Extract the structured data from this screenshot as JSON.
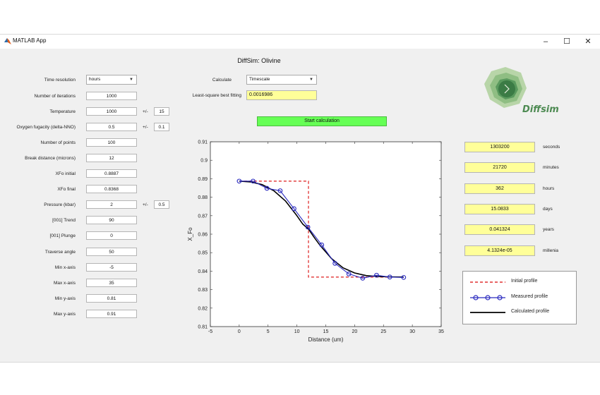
{
  "window": {
    "title": "MATLAB App",
    "minimize_icon": "minimize-icon",
    "maximize_icon": "maximize-icon",
    "close_icon": "close-icon"
  },
  "app_title": "DiffSim: Olivine",
  "left_panel": {
    "time_resolution": {
      "label": "Time resolution",
      "value": "hours"
    },
    "fields": [
      {
        "label": "Number of iterations",
        "value": "1000"
      },
      {
        "label": "Temperature",
        "value": "1000",
        "pm": "+/-",
        "err": "15"
      },
      {
        "label": "Oxygen fugacity (delta-NNO)",
        "value": "0.5",
        "pm": "+/-",
        "err": "0.1"
      },
      {
        "label": "Number of points",
        "value": "100"
      },
      {
        "label": "Break distance (microns)",
        "value": "12"
      },
      {
        "label": "XFo initial",
        "value": "0.8887"
      },
      {
        "label": "XFo final",
        "value": "0.8368"
      },
      {
        "label": "Pressure (kbar)",
        "value": "2",
        "pm": "+/-",
        "err": "0.5"
      },
      {
        "label": "[001] Trend",
        "value": "90"
      },
      {
        "label": "[001] Plunge",
        "value": "0"
      },
      {
        "label": "Traverse angle",
        "value": "50"
      },
      {
        "label": "Min x-axis",
        "value": "-5"
      },
      {
        "label": "Max x-axis",
        "value": "35"
      },
      {
        "label": "Min y-axis",
        "value": "0.81"
      },
      {
        "label": "Max y-axis",
        "value": "0.91"
      }
    ]
  },
  "calc": {
    "calculate_label": "Calculate",
    "calculate_value": "Timescale",
    "lsq_label": "Least-square best fitting",
    "lsq_value": "0.0016986",
    "start_button": "Start calculation"
  },
  "results": [
    {
      "value": "1303200",
      "unit": "seconds"
    },
    {
      "value": "21720",
      "unit": "minutes"
    },
    {
      "value": "362",
      "unit": "hours"
    },
    {
      "value": "15.0833",
      "unit": "days"
    },
    {
      "value": "0.041324",
      "unit": "years"
    },
    {
      "value": "4.1324e-05",
      "unit": "millenia"
    }
  ],
  "logo": {
    "text": "Diffsim",
    "colors": [
      "#b8d5a8",
      "#8fbe83",
      "#5a9a5e",
      "#3b7b45"
    ]
  },
  "chart_data": {
    "type": "line",
    "xlabel": "Distance (um)",
    "ylabel": "X_Fo",
    "xlim": [
      -5,
      35
    ],
    "ylim": [
      0.81,
      0.91
    ],
    "xticks": [
      -5,
      0,
      5,
      10,
      15,
      20,
      25,
      30,
      35
    ],
    "yticks": [
      0.81,
      0.82,
      0.83,
      0.84,
      0.85,
      0.86,
      0.87,
      0.88,
      0.89,
      0.9,
      0.91
    ],
    "series": [
      {
        "name": "Initial profile",
        "color": "#e03030",
        "style": "dashed",
        "x": [
          0,
          12,
          12,
          28.5
        ],
        "y": [
          0.8887,
          0.8887,
          0.8368,
          0.8368
        ]
      },
      {
        "name": "Measured profile",
        "color": "#2a2abf",
        "style": "line-circles",
        "x": [
          0,
          2.4,
          4.8,
          7.1,
          9.5,
          11.9,
          14.3,
          16.6,
          19.0,
          21.4,
          23.8,
          26.1,
          28.5
        ],
        "y": [
          0.8887,
          0.8887,
          0.8848,
          0.8835,
          0.8738,
          0.8638,
          0.8542,
          0.8442,
          0.8385,
          0.8362,
          0.8378,
          0.8368,
          0.8366
        ]
      },
      {
        "name": "Calculated profile",
        "color": "#000000",
        "style": "solid",
        "x": [
          0,
          2,
          4,
          6,
          8,
          10,
          11,
          12,
          13,
          14,
          16,
          18,
          20,
          22,
          24,
          26,
          28.5
        ],
        "y": [
          0.8887,
          0.8883,
          0.8868,
          0.8835,
          0.878,
          0.87,
          0.8655,
          0.8628,
          0.8582,
          0.854,
          0.8468,
          0.8418,
          0.839,
          0.8376,
          0.8371,
          0.8369,
          0.8368
        ]
      }
    ],
    "legend": "bottom-right, outside plot"
  }
}
